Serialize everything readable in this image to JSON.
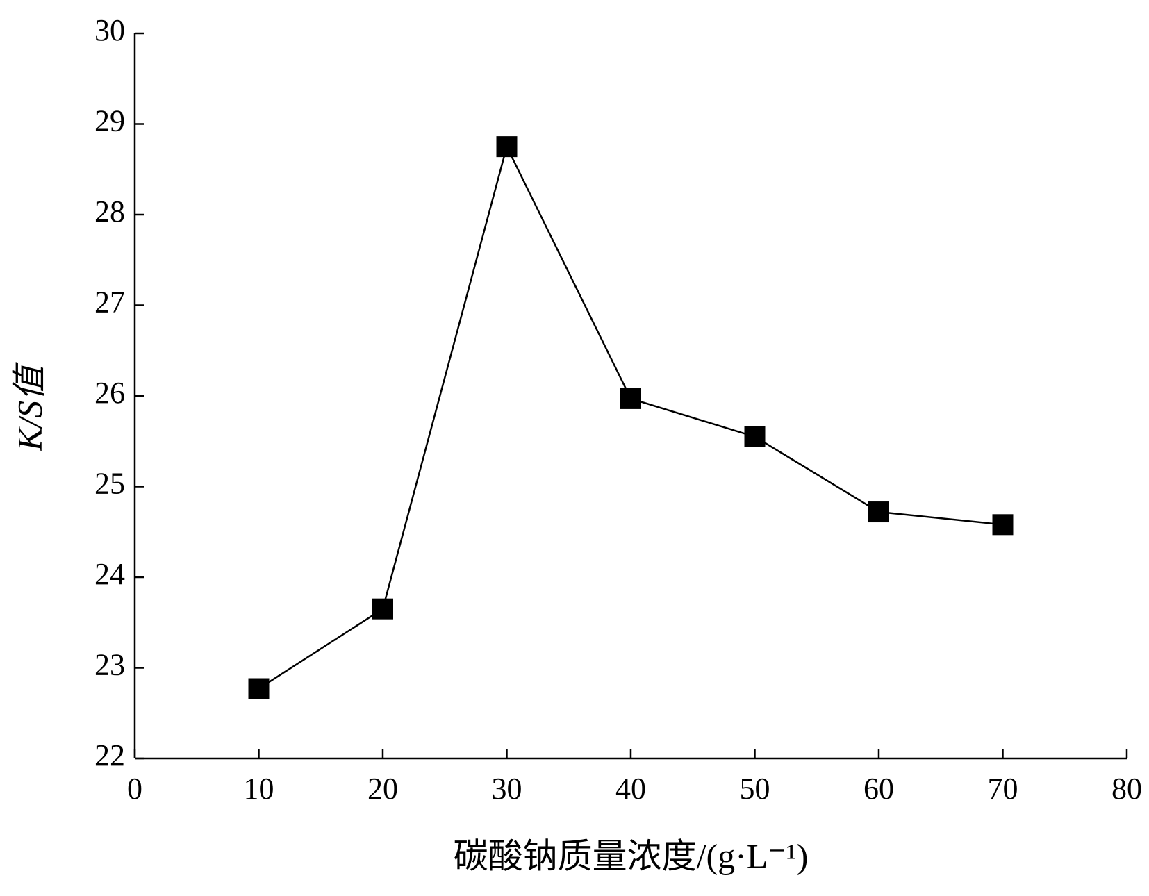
{
  "chart_data": {
    "type": "line",
    "x_label": "碳酸钠质量浓度/(g·L⁻¹)",
    "y_label": "K/S值",
    "x": [
      10,
      20,
      30,
      40,
      50,
      60,
      70
    ],
    "values": [
      22.77,
      23.65,
      28.75,
      25.97,
      25.55,
      24.72,
      24.58
    ],
    "color": "#000000",
    "marker": "square",
    "xlim": [
      0,
      80
    ],
    "xticks": [
      0,
      10,
      20,
      30,
      40,
      50,
      60,
      70,
      80
    ],
    "ylim": [
      22,
      30
    ],
    "yticks": [
      22,
      23,
      24,
      25,
      26,
      27,
      28,
      29,
      30
    ],
    "grid": false
  }
}
